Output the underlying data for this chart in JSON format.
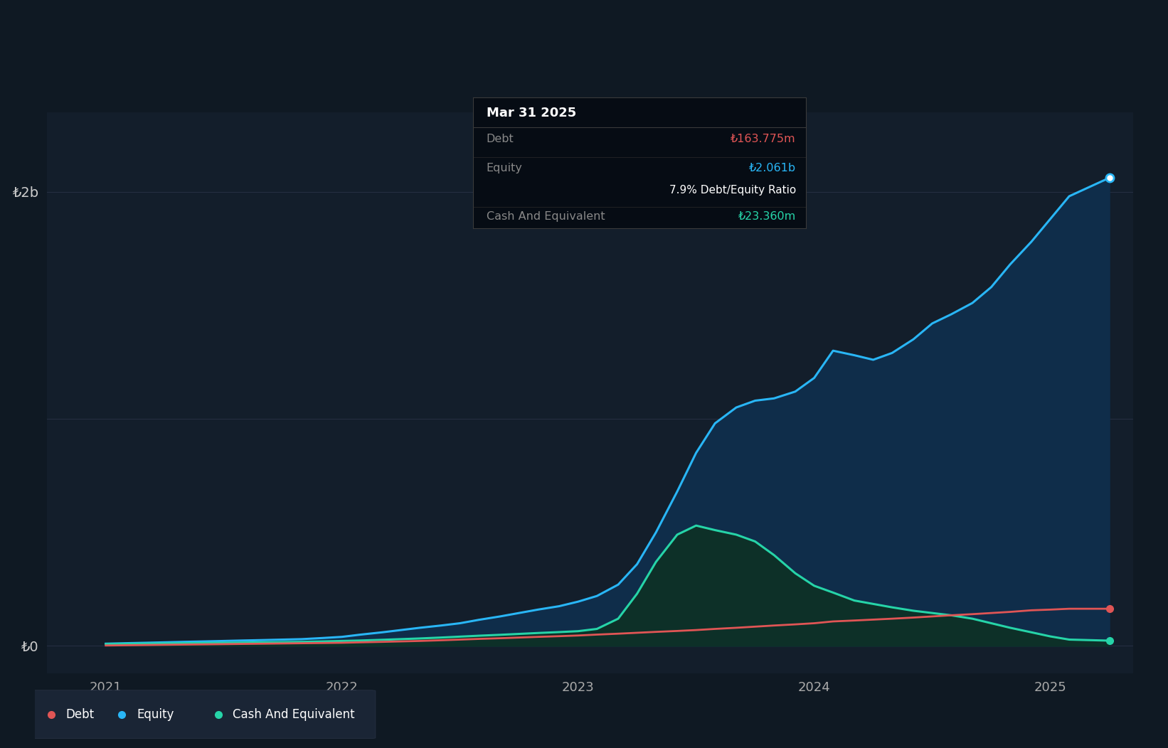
{
  "bg_color": "#0f1923",
  "plot_bg_color": "#131e2b",
  "grid_color": "#2a3447",
  "ylabel_2b": "₺2b",
  "ylabel_0": "₺0",
  "x_ticks": [
    2021,
    2022,
    2023,
    2024,
    2025
  ],
  "ylim": [
    -120000000,
    2350000000
  ],
  "xlim_min": 2020.75,
  "xlim_max": 2025.35,
  "debt_color": "#e05555",
  "equity_color": "#29b6f6",
  "cash_color": "#26d4a8",
  "equity_fill_color": "#0f2d4a",
  "cash_fill_color": "#0d3028",
  "tooltip_bg": "#060c14",
  "tooltip_title": "Mar 31 2025",
  "tooltip_debt_label": "Debt",
  "tooltip_debt_value": "₺163.775m",
  "tooltip_equity_label": "Equity",
  "tooltip_equity_value": "₺2.061b",
  "tooltip_ratio": "7.9% Debt/Equity Ratio",
  "tooltip_cash_label": "Cash And Equivalent",
  "tooltip_cash_value": "₺23.360m",
  "legend_debt": "Debt",
  "legend_equity": "Equity",
  "legend_cash": "Cash And Equivalent",
  "dates": [
    2021.0,
    2021.08,
    2021.17,
    2021.25,
    2021.33,
    2021.42,
    2021.5,
    2021.58,
    2021.67,
    2021.75,
    2021.83,
    2021.92,
    2022.0,
    2022.08,
    2022.17,
    2022.25,
    2022.33,
    2022.42,
    2022.5,
    2022.58,
    2022.67,
    2022.75,
    2022.83,
    2022.92,
    2023.0,
    2023.08,
    2023.17,
    2023.25,
    2023.33,
    2023.42,
    2023.5,
    2023.58,
    2023.67,
    2023.75,
    2023.83,
    2023.92,
    2024.0,
    2024.08,
    2024.17,
    2024.25,
    2024.33,
    2024.42,
    2024.5,
    2024.58,
    2024.67,
    2024.75,
    2024.83,
    2024.92,
    2025.0,
    2025.08,
    2025.25
  ],
  "debt": [
    2000000,
    3000000,
    4000000,
    5000000,
    6000000,
    7000000,
    8000000,
    9000000,
    10000000,
    11000000,
    12000000,
    13000000,
    14000000,
    16000000,
    18000000,
    20000000,
    22000000,
    25000000,
    28000000,
    31000000,
    34000000,
    37000000,
    40000000,
    43000000,
    46000000,
    50000000,
    54000000,
    58000000,
    62000000,
    66000000,
    70000000,
    75000000,
    80000000,
    85000000,
    90000000,
    95000000,
    100000000,
    108000000,
    112000000,
    116000000,
    120000000,
    125000000,
    130000000,
    135000000,
    140000000,
    145000000,
    150000000,
    157000000,
    160000000,
    163775000,
    163775000
  ],
  "equity": [
    10000000,
    12000000,
    14000000,
    16000000,
    18000000,
    20000000,
    22000000,
    24000000,
    26000000,
    28000000,
    30000000,
    35000000,
    40000000,
    50000000,
    60000000,
    70000000,
    80000000,
    90000000,
    100000000,
    115000000,
    130000000,
    145000000,
    160000000,
    175000000,
    195000000,
    220000000,
    270000000,
    360000000,
    500000000,
    680000000,
    850000000,
    980000000,
    1050000000,
    1080000000,
    1090000000,
    1120000000,
    1180000000,
    1300000000,
    1280000000,
    1260000000,
    1290000000,
    1350000000,
    1420000000,
    1460000000,
    1510000000,
    1580000000,
    1680000000,
    1780000000,
    1880000000,
    1980000000,
    2061000000
  ],
  "cash": [
    8000000,
    9000000,
    10000000,
    11000000,
    12000000,
    13000000,
    14000000,
    15000000,
    16000000,
    17000000,
    18000000,
    20000000,
    22000000,
    24000000,
    27000000,
    30000000,
    33000000,
    37000000,
    41000000,
    45000000,
    49000000,
    53000000,
    57000000,
    61000000,
    65000000,
    75000000,
    120000000,
    230000000,
    370000000,
    490000000,
    530000000,
    510000000,
    490000000,
    460000000,
    400000000,
    320000000,
    265000000,
    235000000,
    200000000,
    185000000,
    170000000,
    155000000,
    145000000,
    135000000,
    120000000,
    100000000,
    80000000,
    60000000,
    42000000,
    28000000,
    23360000
  ]
}
